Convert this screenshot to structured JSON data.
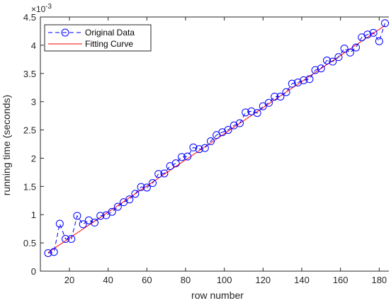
{
  "chart_data": {
    "type": "line",
    "title": "",
    "xlabel": "row number",
    "ylabel": "running time (seconds)",
    "y_exponent_base": "×10",
    "y_exponent_power": "-3",
    "xlim": [
      5,
      185
    ],
    "ylim": [
      0,
      4.5
    ],
    "xticks": [
      20,
      40,
      60,
      80,
      100,
      120,
      140,
      160,
      180
    ],
    "yticks": [
      0,
      0.5,
      1,
      1.5,
      2,
      2.5,
      3,
      3.5,
      4,
      4.5
    ],
    "xtick_labels": [
      "20",
      "40",
      "60",
      "80",
      "100",
      "120",
      "140",
      "160",
      "180"
    ],
    "ytick_labels": [
      "0",
      "0.5",
      "1",
      "1.5",
      "2",
      "2.5",
      "3",
      "3.5",
      "4",
      "4.5"
    ],
    "grid": false,
    "legend_position": "top-left",
    "series": [
      {
        "name": "Original Data",
        "style": "dashed-circle-markers",
        "color": "#0000ff",
        "x": [
          9,
          12,
          15,
          18,
          21,
          24,
          27,
          30,
          33,
          36,
          39,
          42,
          45,
          48,
          51,
          54,
          57,
          60,
          63,
          66,
          69,
          72,
          75,
          78,
          81,
          84,
          87,
          90,
          93,
          96,
          99,
          102,
          105,
          108,
          111,
          114,
          117,
          120,
          123,
          126,
          129,
          132,
          135,
          138,
          141,
          144,
          147,
          150,
          153,
          156,
          159,
          162,
          165,
          168,
          171,
          174,
          177,
          180,
          183
        ],
        "y": [
          0.32,
          0.34,
          0.84,
          0.57,
          0.57,
          0.98,
          0.83,
          0.9,
          0.86,
          0.98,
          0.99,
          1.05,
          1.14,
          1.22,
          1.27,
          1.37,
          1.49,
          1.48,
          1.56,
          1.72,
          1.73,
          1.86,
          1.91,
          2.02,
          2.03,
          2.19,
          2.16,
          2.18,
          2.3,
          2.41,
          2.46,
          2.5,
          2.58,
          2.62,
          2.81,
          2.83,
          2.8,
          2.92,
          2.98,
          3.09,
          3.09,
          3.17,
          3.32,
          3.34,
          3.38,
          3.4,
          3.56,
          3.59,
          3.73,
          3.71,
          3.79,
          3.94,
          3.87,
          3.96,
          4.14,
          4.19,
          4.22,
          4.07,
          4.39
        ]
      },
      {
        "name": "Fitting Curve",
        "style": "solid",
        "color": "#ff0000",
        "x": [
          9,
          183
        ],
        "y": [
          0.33,
          4.35
        ]
      }
    ]
  }
}
